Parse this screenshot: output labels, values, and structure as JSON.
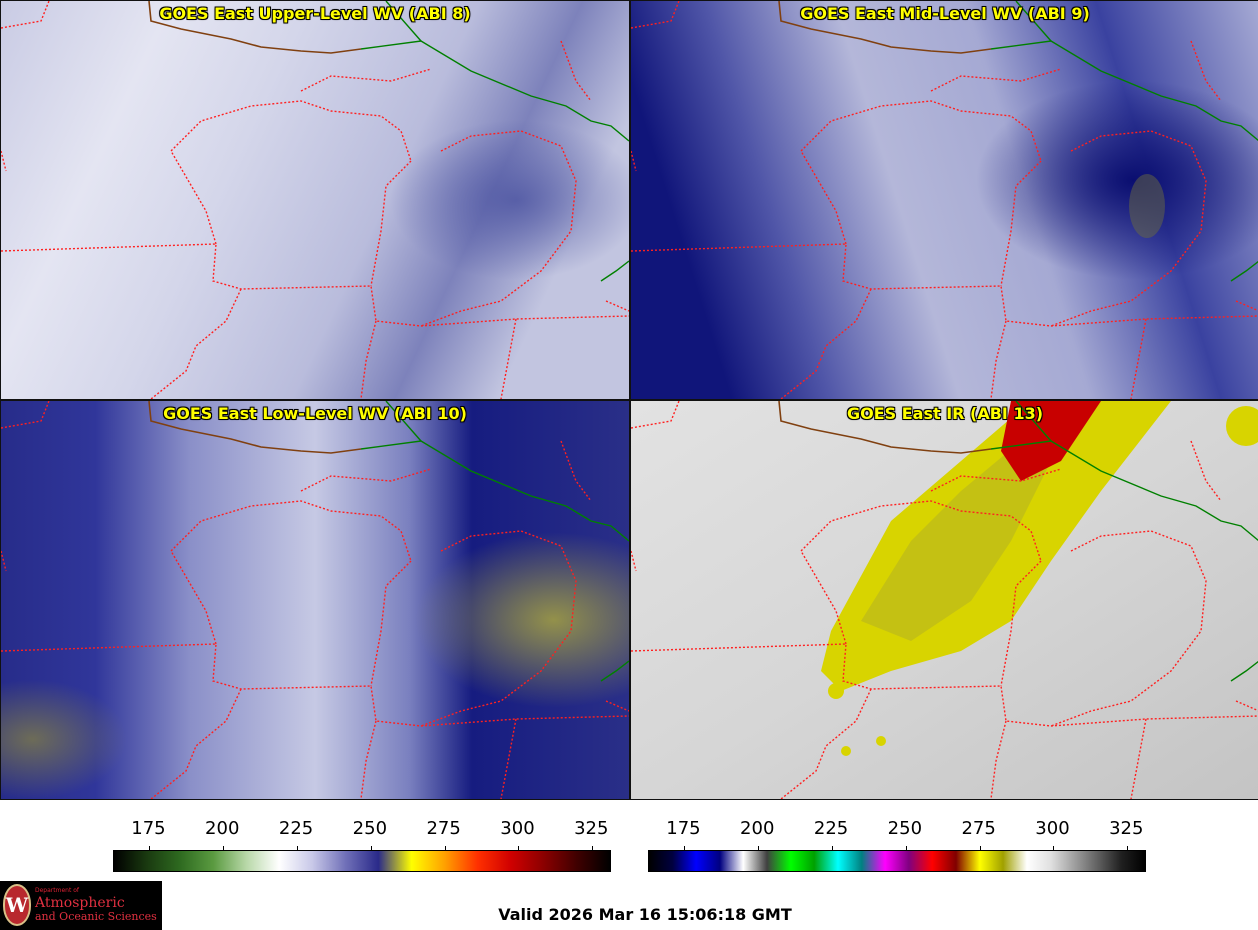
{
  "panels": [
    {
      "title": "GOES East Upper-Level WV (ABI 8)",
      "style": "upper"
    },
    {
      "title": "GOES East Mid-Level WV (ABI 9)",
      "style": "mid"
    },
    {
      "title": "GOES East Low-Level WV (ABI 10)",
      "style": "low"
    },
    {
      "title": "GOES East IR (ABI 13)",
      "style": "ir"
    }
  ],
  "colorbars": [
    {
      "name": "water-vapor",
      "ticks": [
        "175",
        "200",
        "225",
        "250",
        "275",
        "300",
        "325"
      ],
      "range": [
        163,
        331
      ],
      "tick_values": [
        175,
        200,
        225,
        250,
        275,
        300,
        325
      ],
      "gradient": [
        "#000000",
        "#1a3a10",
        "#2e6a20",
        "#5a9a40",
        "#b8d8a8",
        "#ffffff",
        "#c8c8e8",
        "#7070b8",
        "#2a2a8a",
        "#ffff00",
        "#ffa000",
        "#ff3000",
        "#d00000",
        "#8a0000",
        "#400000",
        "#000000"
      ]
    },
    {
      "name": "infrared",
      "ticks": [
        "175",
        "200",
        "225",
        "250",
        "275",
        "300",
        "325"
      ],
      "range": [
        163,
        331
      ],
      "tick_values": [
        175,
        200,
        225,
        250,
        275,
        300,
        325
      ],
      "gradient": [
        "#000000",
        "#000040",
        "#0000ff",
        "#000080",
        "#ffffff",
        "#404040",
        "#00ff00",
        "#00a000",
        "#00ffff",
        "#008080",
        "#ff00ff",
        "#800080",
        "#ff0000",
        "#800000",
        "#ffff00",
        "#a0a000",
        "#ffffff",
        "#e0e0e0",
        "#a0a0a0",
        "#606060",
        "#202020",
        "#000000"
      ]
    }
  ],
  "logo": {
    "letter": "W",
    "dept": "Department of",
    "line1": "Atmospheric",
    "line2": "and Oceanic Sciences"
  },
  "valid_time": "Valid 2026 Mar 16 15:06:18 GMT",
  "colors": {
    "state_border": "#ff2020",
    "coast_border": "#804010",
    "country_border": "#008000",
    "title_text": "#ffff00"
  }
}
